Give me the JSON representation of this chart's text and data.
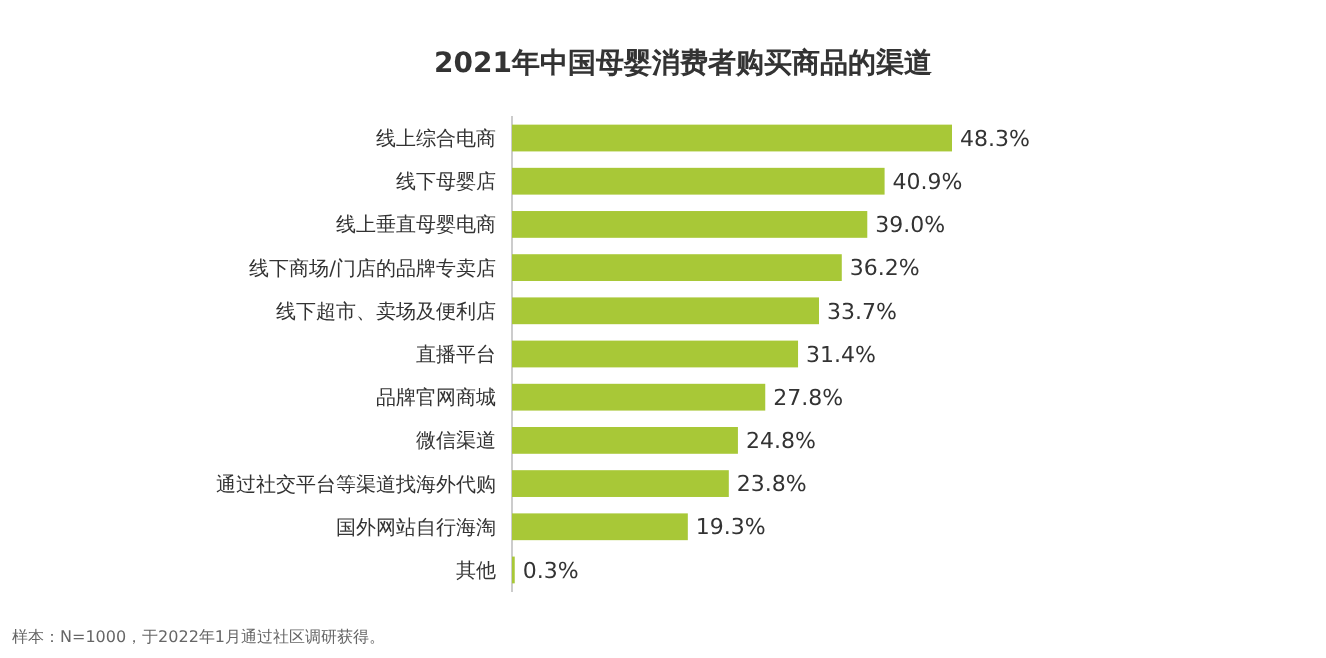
{
  "chart_data": {
    "type": "bar",
    "orientation": "horizontal",
    "title": "2021年中国母婴消费者购买商品的渠道",
    "categories": [
      "线上综合电商",
      "线下母婴店",
      "线上垂直母婴电商",
      "线下商场/门店的品牌专卖店",
      "线下超市、卖场及便利店",
      "直播平台",
      "品牌官网商城",
      "微信渠道",
      "通过社交平台等渠道找海外代购",
      "国外网站自行海淘",
      "其他"
    ],
    "values": [
      48.3,
      40.9,
      39.0,
      36.2,
      33.7,
      31.4,
      27.8,
      24.8,
      23.8,
      19.3,
      0.3
    ],
    "value_labels": [
      "48.3%",
      "40.9%",
      "39.0%",
      "36.2%",
      "33.7%",
      "31.4%",
      "27.8%",
      "24.8%",
      "23.8%",
      "19.3%",
      "0.3%"
    ],
    "color": "#a8c837",
    "annotations": [
      "样本：N=1000，于2022年1月通过社区调研获得。"
    ]
  }
}
